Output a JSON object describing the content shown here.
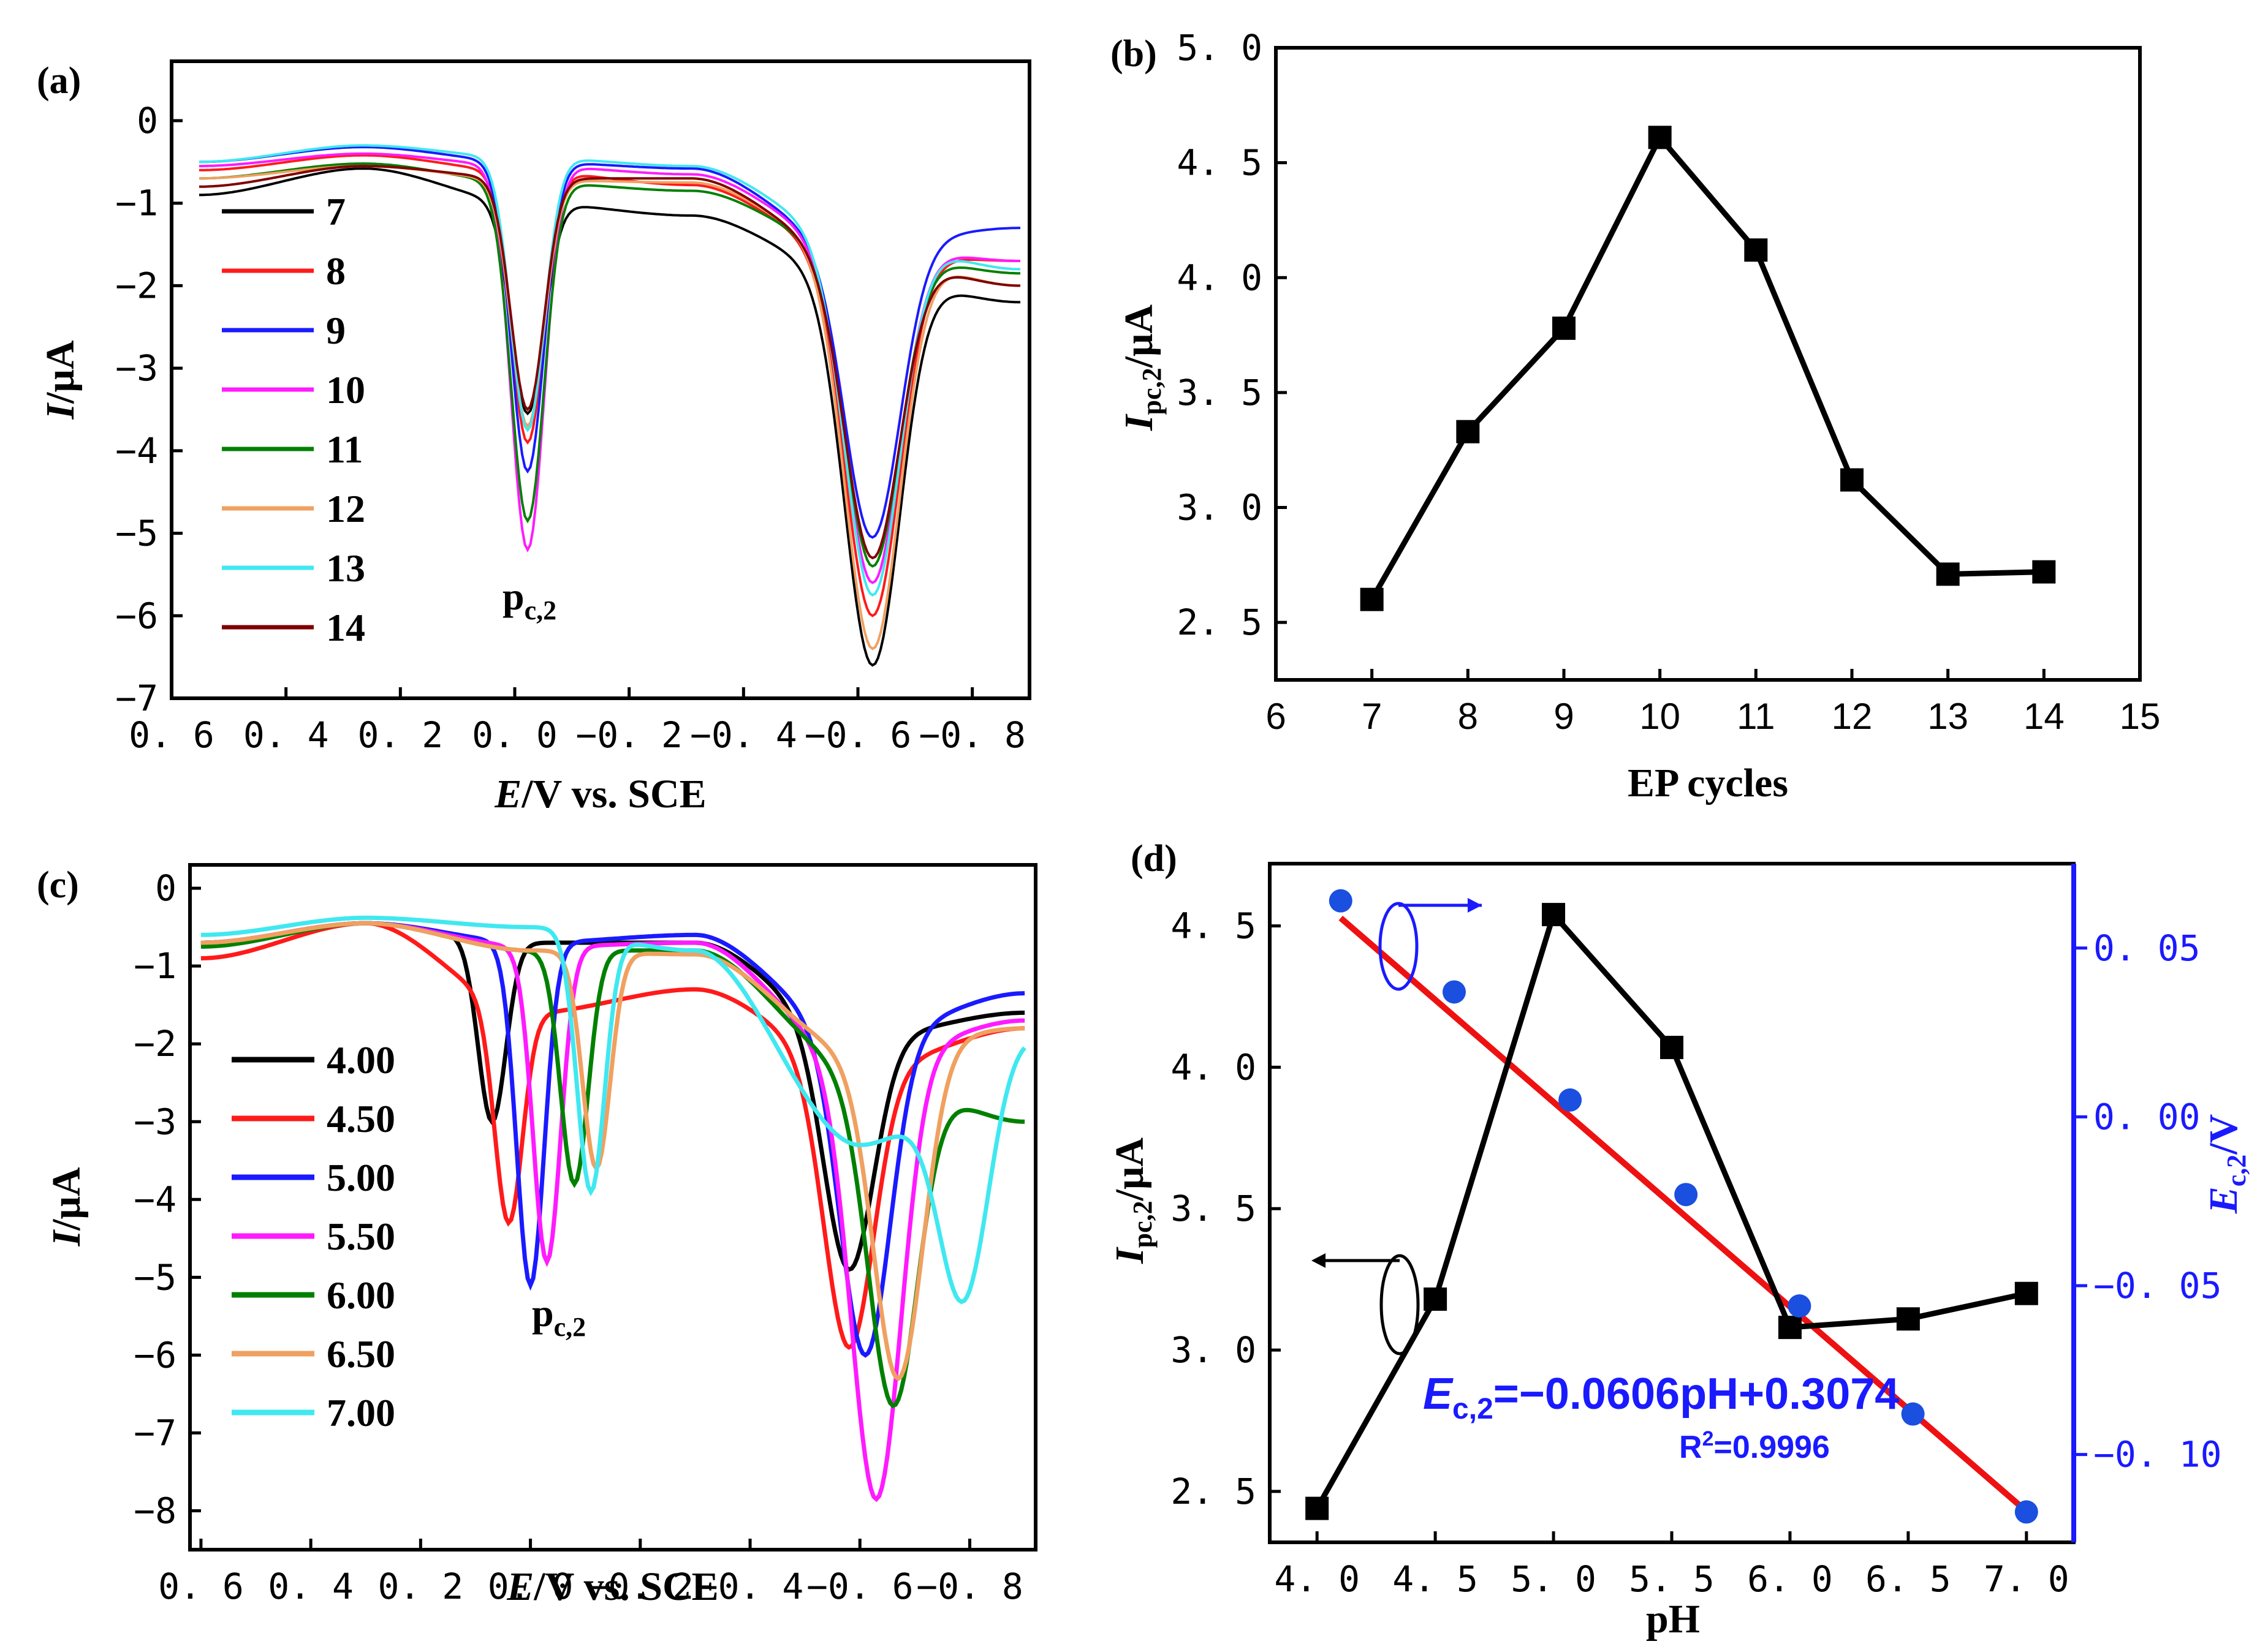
{
  "chart_data": [
    {
      "id": "a",
      "panel_label": "(a)",
      "type": "line",
      "xlabel_italic": "E",
      "xlabel_rest": "/V vs. SCE",
      "ylabel_italic": "I",
      "ylabel_rest": "/μA",
      "xlim": [
        0.6,
        -0.9
      ],
      "ylim": [
        -7,
        0
      ],
      "xticks": [
        0.6,
        0.4,
        0.2,
        0.0,
        -0.2,
        -0.4,
        -0.6,
        -0.8
      ],
      "xtick_labels": [
        "0. 6",
        "0. 4",
        "0. 2",
        "0. 0",
        "−0. 2",
        "−0. 4",
        "−0. 6",
        "−0. 8"
      ],
      "yticks": [
        0,
        -1,
        -2,
        -3,
        -4,
        -5,
        -6,
        -7
      ],
      "ytick_labels": [
        "0",
        "−1",
        "−2",
        "−3",
        "−4",
        "−5",
        "−6",
        "−7"
      ],
      "annotation": {
        "main": "p",
        "sub": "c,2"
      },
      "grid": false,
      "legend_position": "left",
      "series": [
        {
          "name": "7",
          "color": "#000000",
          "base": [
            -0.9,
            -0.58,
            -1.0,
            -1.15,
            -1.85,
            -2.2
          ],
          "p1": -3.55,
          "p2": -6.6
        },
        {
          "name": "8",
          "color": "#ff1a1a",
          "base": [
            -0.6,
            -0.42,
            -0.62,
            -0.78,
            -1.6,
            -1.7
          ],
          "p1": -3.9,
          "p2": -6.0
        },
        {
          "name": "9",
          "color": "#1a1aff",
          "base": [
            -0.5,
            -0.32,
            -0.5,
            -0.58,
            -1.5,
            -1.3
          ],
          "p1": -4.25,
          "p2": -5.05
        },
        {
          "name": "10",
          "color": "#ff1aff",
          "base": [
            -0.55,
            -0.4,
            -0.55,
            -0.65,
            -1.5,
            -1.7
          ],
          "p1": -5.2,
          "p2": -5.6
        },
        {
          "name": "11",
          "color": "#008000",
          "base": [
            -0.7,
            -0.52,
            -0.75,
            -0.85,
            -1.55,
            -1.85
          ],
          "p1": -4.85,
          "p2": -5.4
        },
        {
          "name": "12",
          "color": "#f0a060",
          "base": [
            -0.7,
            -0.55,
            -0.72,
            -0.75,
            -1.55,
            -2.0
          ],
          "p1": -3.7,
          "p2": -6.4
        },
        {
          "name": "13",
          "color": "#40e8f0",
          "base": [
            -0.5,
            -0.3,
            -0.45,
            -0.55,
            -1.4,
            -1.8
          ],
          "p1": -3.75,
          "p2": -5.75
        },
        {
          "name": "14",
          "color": "#800000",
          "base": [
            -0.8,
            -0.55,
            -0.7,
            -0.7,
            -1.6,
            -2.0
          ],
          "p1": -3.5,
          "p2": -5.3
        }
      ]
    },
    {
      "id": "b",
      "panel_label": "(b)",
      "type": "line",
      "xlabel": "EP cycles",
      "ylabel_italic": "I",
      "ylabel_sub": "pc,2",
      "ylabel_rest": "/μA",
      "xlim": [
        6,
        15
      ],
      "ylim": [
        2.25,
        5.0
      ],
      "xticks": [
        6,
        7,
        8,
        9,
        10,
        11,
        12,
        13,
        14,
        15
      ],
      "xtick_labels": [
        "6",
        "7",
        "8",
        "9",
        "10",
        "11",
        "12",
        "13",
        "14",
        "15"
      ],
      "yticks": [
        2.5,
        3.0,
        3.5,
        4.0,
        4.5,
        5.0
      ],
      "ytick_labels": [
        "2. 5",
        "3. 0",
        "3. 5",
        "4. 0",
        "4. 5",
        "5. 0"
      ],
      "grid": false,
      "series": [
        {
          "color": "#000000",
          "x": [
            7,
            8,
            9,
            10,
            11,
            12,
            13,
            14
          ],
          "y": [
            2.6,
            3.33,
            3.78,
            4.61,
            4.12,
            3.12,
            2.71,
            2.72
          ]
        }
      ]
    },
    {
      "id": "c",
      "panel_label": "(c)",
      "type": "line",
      "xlabel_italic": "E",
      "xlabel_rest": "/V vs. SCE",
      "ylabel_italic": "I",
      "ylabel_rest": "/μA",
      "xlim": [
        0.62,
        -0.92
      ],
      "ylim": [
        -8.5,
        0.3
      ],
      "xticks": [
        0.6,
        0.4,
        0.2,
        0.0,
        -0.2,
        -0.4,
        -0.6,
        -0.8
      ],
      "xtick_labels": [
        "0. 6",
        "0. 4",
        "0. 2",
        "0. 0",
        "−0. 2",
        "−0. 4",
        "−0. 6",
        "−0. 8"
      ],
      "yticks": [
        0,
        -1,
        -2,
        -3,
        -4,
        -5,
        -6,
        -7,
        -8
      ],
      "ytick_labels": [
        "0",
        "−1",
        "−2",
        "−3",
        "−4",
        "−5",
        "−6",
        "−7",
        "−8"
      ],
      "annotation": {
        "main": "p",
        "sub": "c,2"
      },
      "grid": false,
      "legend_position": "left",
      "series": [
        {
          "name": "4.00",
          "color": "#000000",
          "e1": 0.07,
          "p1": -3.0,
          "e2": -0.58,
          "p2": -4.9,
          "base": [
            -0.7,
            -0.45,
            -0.7,
            -0.7,
            -1.9,
            -1.6
          ]
        },
        {
          "name": "4.50",
          "color": "#ff1a1a",
          "e1": 0.04,
          "p1": -4.3,
          "e2": -0.58,
          "p2": -5.9,
          "base": [
            -0.9,
            -0.45,
            -1.6,
            -1.3,
            -2.3,
            -1.8
          ]
        },
        {
          "name": "5.00",
          "color": "#1a1aff",
          "e1": 0.0,
          "p1": -5.1,
          "e2": -0.61,
          "p2": -6.0,
          "base": [
            -0.7,
            -0.45,
            -0.7,
            -0.6,
            -1.9,
            -1.35
          ]
        },
        {
          "name": "5.50",
          "color": "#ff1aff",
          "e1": -0.03,
          "p1": -4.8,
          "e2": -0.63,
          "p2": -7.85,
          "base": [
            -0.7,
            -0.45,
            -0.75,
            -0.7,
            -2.2,
            -1.7
          ]
        },
        {
          "name": "6.00",
          "color": "#008000",
          "e1": -0.08,
          "p1": -3.8,
          "e2": -0.66,
          "p2": -6.65,
          "base": [
            -0.75,
            -0.45,
            -0.8,
            -0.8,
            -2.3,
            -3.0
          ]
        },
        {
          "name": "6.50",
          "color": "#f0a060",
          "e1": -0.12,
          "p1": -3.6,
          "e2": -0.67,
          "p2": -6.3,
          "base": [
            -0.7,
            -0.45,
            -0.8,
            -0.85,
            -2.1,
            -1.8
          ]
        },
        {
          "name": "7.00",
          "color": "#40e8f0",
          "e1": -0.11,
          "p1": -3.9,
          "e2": -0.79,
          "p2": -5.3,
          "base": [
            -0.6,
            -0.38,
            -0.5,
            -0.8,
            -3.3,
            -1.9
          ]
        }
      ]
    },
    {
      "id": "d",
      "panel_label": "(d)",
      "type": "line+scatter",
      "xlabel": "pH",
      "ylabel_italic": "I",
      "ylabel_sub": "pc,2",
      "ylabel_rest": "/μA",
      "y2label_italic": "E",
      "y2label_sub": "c,2",
      "y2label_rest": "/V",
      "xlim": [
        3.8,
        7.2
      ],
      "ylim": [
        2.32,
        4.72
      ],
      "y2lim": [
        -0.126,
        0.075
      ],
      "xticks": [
        4.0,
        4.5,
        5.0,
        5.5,
        6.0,
        6.5,
        7.0
      ],
      "xtick_labels": [
        "4. 0",
        "4. 5",
        "5. 0",
        "5. 5",
        "6. 0",
        "6. 5",
        "7. 0"
      ],
      "yticks": [
        2.5,
        3.0,
        3.5,
        4.0,
        4.5
      ],
      "ytick_labels": [
        "2. 5",
        "3. 0",
        "3. 5",
        "4. 0",
        "4. 5"
      ],
      "y2ticks": [
        0.05,
        0.0,
        -0.05,
        -0.1
      ],
      "y2tick_labels": [
        "0. 05",
        "0. 00",
        "−0. 05",
        "−0. 10"
      ],
      "grid": false,
      "series": [
        {
          "axis": "left",
          "marker": "square",
          "color": "#000000",
          "x": [
            4.0,
            4.5,
            5.0,
            5.5,
            6.0,
            6.5,
            7.0
          ],
          "y": [
            2.44,
            3.18,
            4.54,
            4.07,
            3.08,
            3.11,
            3.2
          ]
        },
        {
          "axis": "right",
          "marker": "circle",
          "color": "#1a4fe0",
          "x": [
            4.1,
            4.58,
            5.07,
            5.56,
            6.04,
            6.52,
            7.0
          ],
          "y": [
            0.064,
            0.037,
            0.005,
            -0.023,
            -0.056,
            -0.088,
            -0.117
          ]
        },
        {
          "axis": "right",
          "type": "fit",
          "color": "#ee1111",
          "x": [
            4.1,
            7.0
          ],
          "y": [
            0.0589,
            -0.1168
          ]
        }
      ],
      "equation": {
        "italic": "E",
        "sub": "c,2",
        "rest": "=−0.0606pH+0.3074"
      },
      "r2": {
        "main": "R",
        "sup": "2",
        "rest": "=0.9996"
      }
    }
  ]
}
